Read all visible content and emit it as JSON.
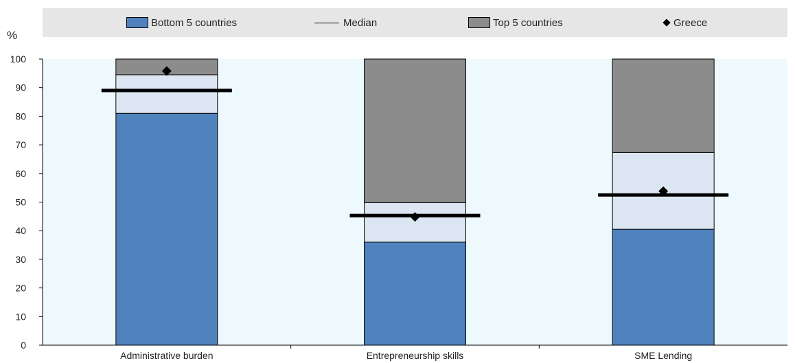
{
  "chart_data": {
    "type": "bar",
    "unit_label": "%",
    "categories": [
      "Administrative burden",
      "Entrepreneurship skills",
      "SME Lending"
    ],
    "ylim": [
      0,
      100
    ],
    "yticks": [
      0,
      10,
      20,
      30,
      40,
      50,
      60,
      70,
      80,
      90,
      100
    ],
    "series": [
      {
        "name": "Bottom 5 countries",
        "values": [
          81,
          36,
          40.5
        ]
      },
      {
        "name": "Middle range",
        "values": [
          94.5,
          49.8,
          67.3
        ]
      },
      {
        "name": "Top 5 countries",
        "values": [
          100,
          100,
          100
        ]
      }
    ],
    "median": [
      89,
      45.3,
      52.5
    ],
    "greece": [
      95.8,
      44.8,
      53.8
    ],
    "legend": {
      "bottom": "Bottom 5 countries",
      "median": "Median",
      "top": "Top 5 countries",
      "greece": "Greece"
    },
    "colors": {
      "bottom": "#4f81bd",
      "middle": "#dce6f2",
      "top": "#8c8c8c",
      "plot_bg": "#eef9fd",
      "marker": "#000000"
    }
  }
}
